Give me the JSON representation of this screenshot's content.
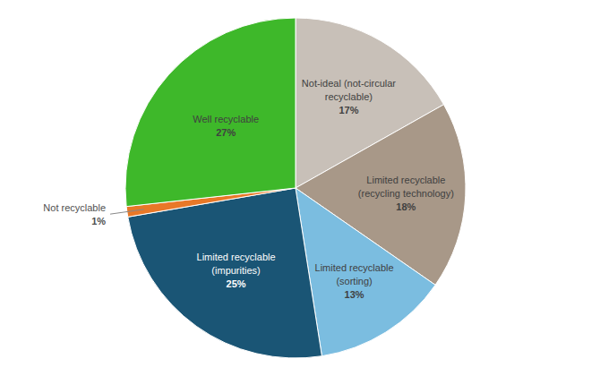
{
  "chart_data": {
    "type": "pie",
    "categories": [
      "Not-ideal (not-circular\nrecyclable)",
      "Limited recyclable\n(recycling technology)",
      "Limited recyclable\n(sorting)",
      "Limited recyclable\n(impurities)",
      "Not recyclable",
      "Well recyclable"
    ],
    "values": [
      17,
      18,
      13,
      25,
      1,
      27
    ],
    "value_labels": [
      "17%",
      "18%",
      "13%",
      "25%",
      "1%",
      "27%"
    ],
    "colors": [
      "#c8c0b8",
      "#a89888",
      "#7bbde0",
      "#1a5575",
      "#e87828",
      "#3eb82a"
    ],
    "data_labels": true
  }
}
